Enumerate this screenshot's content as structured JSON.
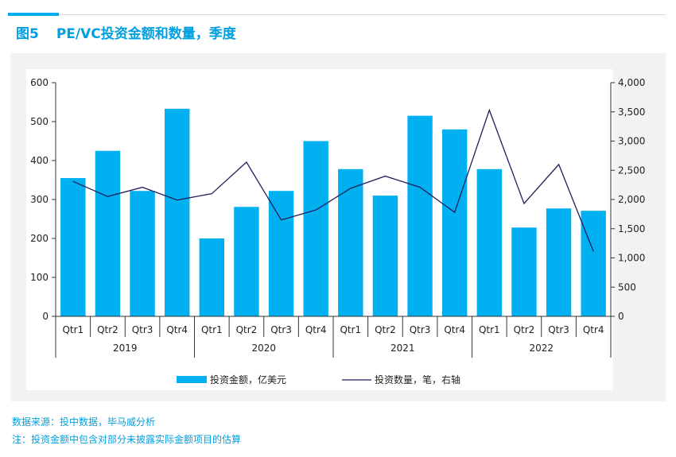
{
  "figure": {
    "number": "图5",
    "title": "PE/VC投资金额和数量，季度"
  },
  "notes": {
    "source": "数据来源：投中数据，毕马威分析",
    "footnote": "注：投资金额中包含对部分未披露实际金额项目的估算"
  },
  "colors": {
    "accent": "#00aeef",
    "bar": "#00b0f0",
    "line": "#1f1f5c",
    "title": "#00a0e0"
  },
  "chart_data": {
    "type": "bar",
    "combo": "bar+line (secondary axis)",
    "categories": [
      "Qtr1",
      "Qtr2",
      "Qtr3",
      "Qtr4",
      "Qtr1",
      "Qtr2",
      "Qtr3",
      "Qtr4",
      "Qtr1",
      "Qtr2",
      "Qtr3",
      "Qtr4",
      "Qtr1",
      "Qtr2",
      "Qtr3",
      "Qtr4"
    ],
    "groups": [
      {
        "label": "2019",
        "count": 4
      },
      {
        "label": "2020",
        "count": 4
      },
      {
        "label": "2021",
        "count": 4
      },
      {
        "label": "2022",
        "count": 4
      }
    ],
    "series": [
      {
        "name": "投资金额，亿美元",
        "type": "bar",
        "axis": "left",
        "values": [
          355,
          425,
          322,
          533,
          200,
          281,
          322,
          450,
          378,
          310,
          515,
          480,
          378,
          228,
          277,
          271
        ]
      },
      {
        "name": "投资数量，笔，右轴",
        "type": "line",
        "axis": "right",
        "values": [
          2310,
          2050,
          2210,
          1990,
          2100,
          2640,
          1650,
          1820,
          2190,
          2400,
          2210,
          1780,
          3530,
          1930,
          2600,
          1110
        ]
      }
    ],
    "y_left": {
      "min": 0,
      "max": 600,
      "ticks": [
        0,
        100,
        200,
        300,
        400,
        500,
        600
      ]
    },
    "y_right": {
      "min": 0,
      "max": 4000,
      "ticks": [
        "0",
        "500",
        "1,000",
        "1,500",
        "2,000",
        "2,500",
        "3,000",
        "3,500",
        "4,000"
      ]
    },
    "grid": false,
    "legend_position": "bottom"
  }
}
